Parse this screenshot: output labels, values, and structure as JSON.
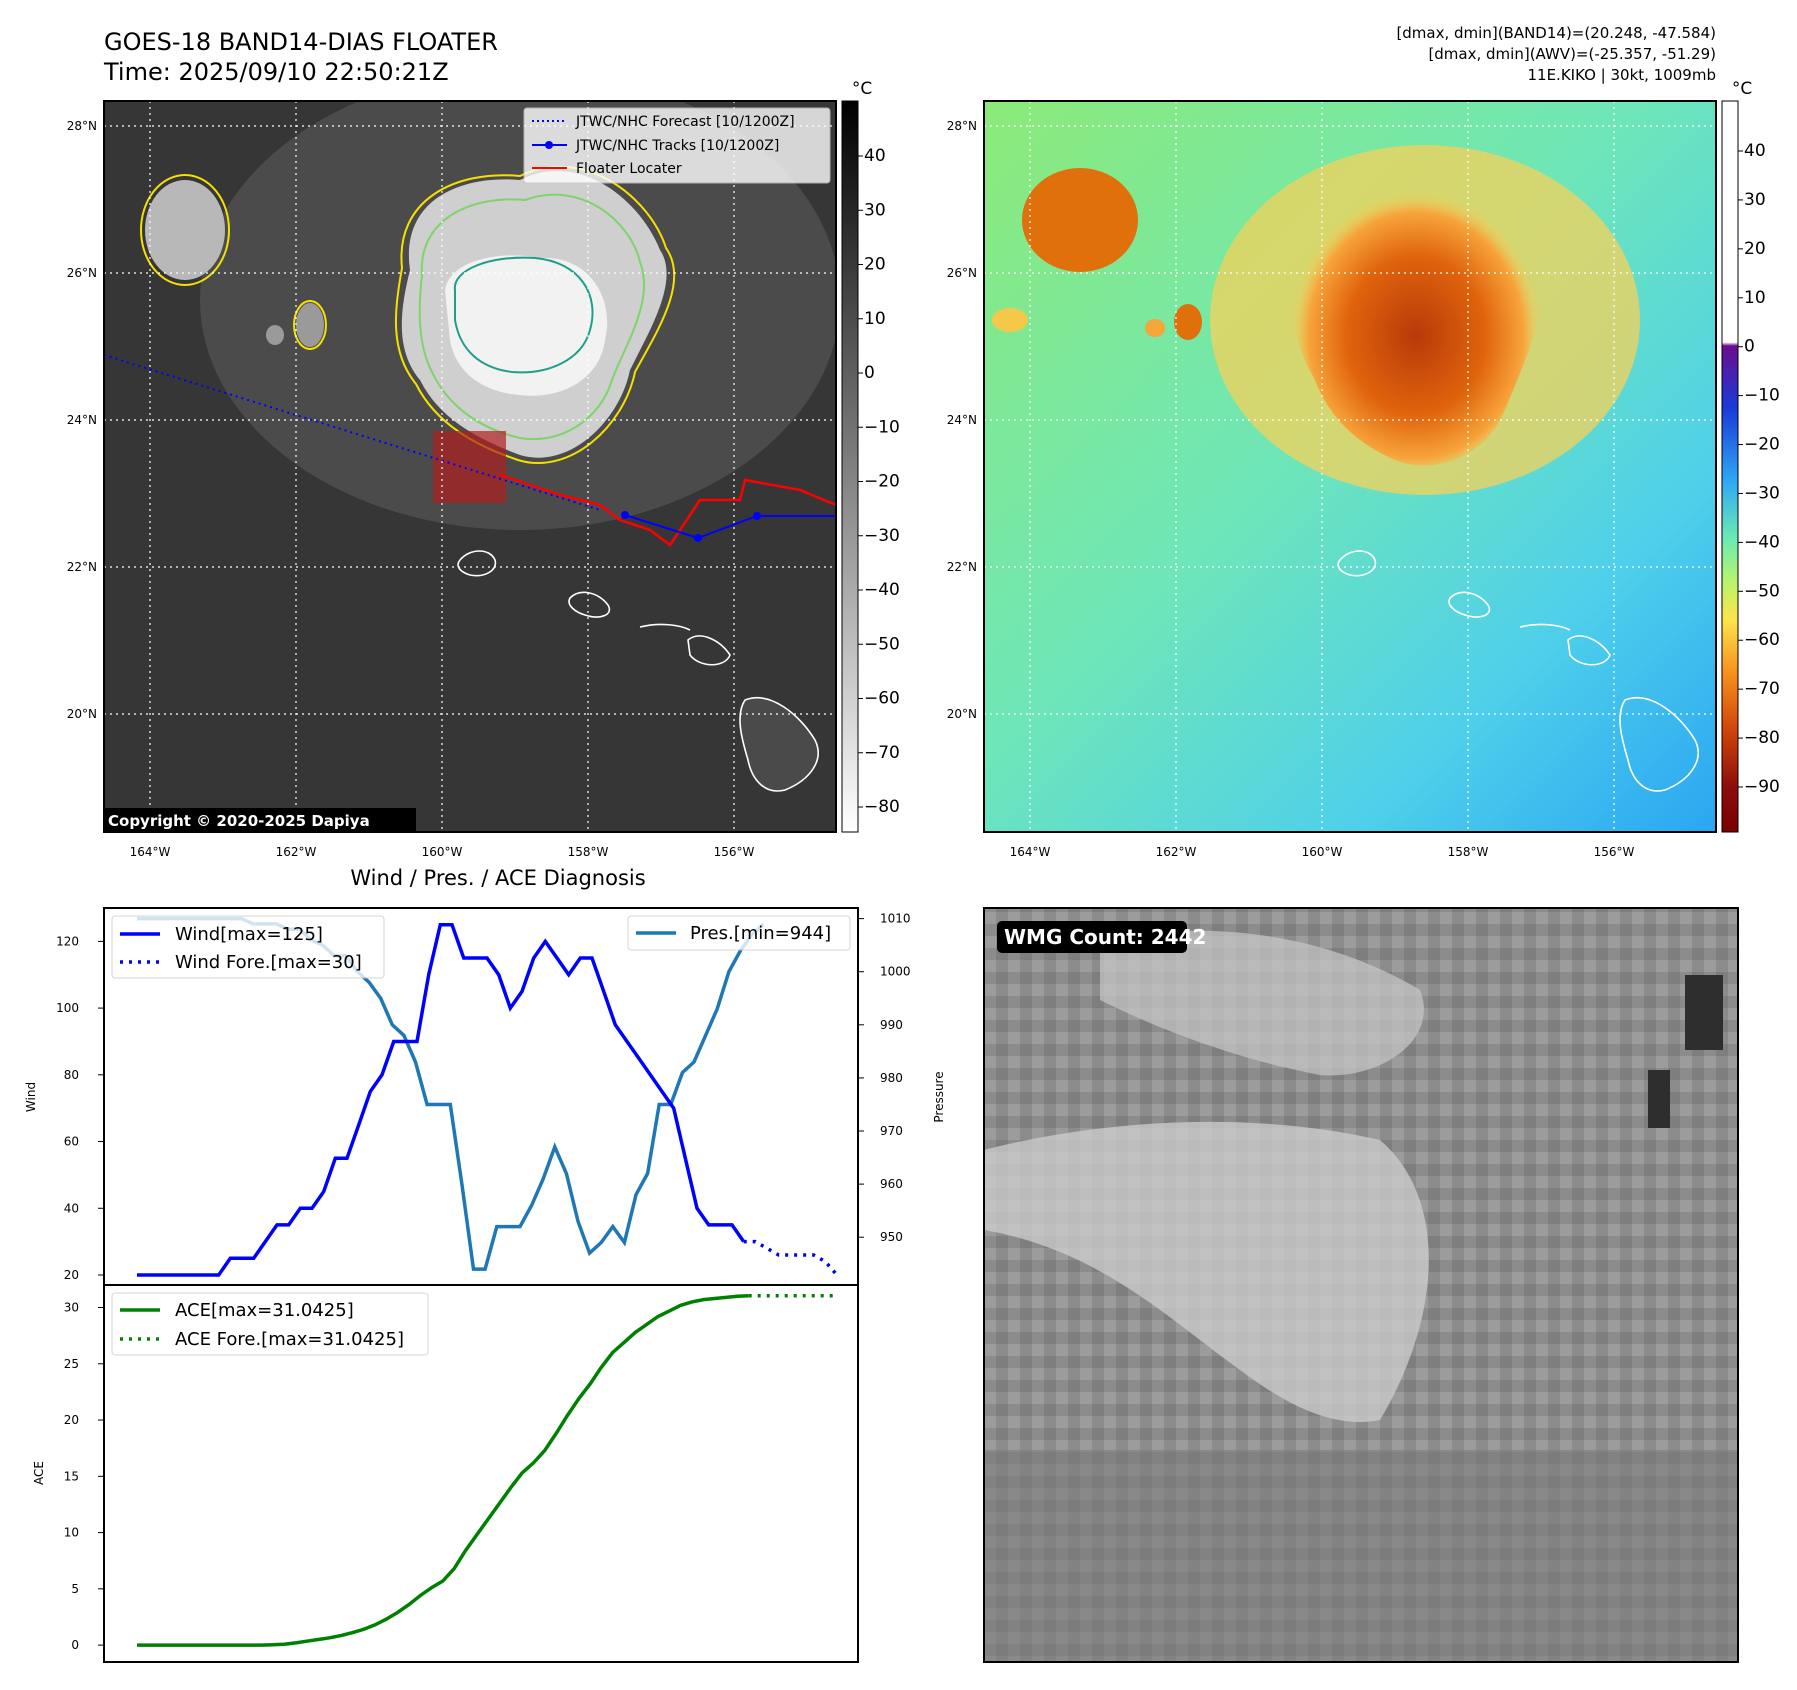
{
  "header": {
    "title_line1": "GOES-18 BAND14-DIAS FLOATER",
    "title_line2": "Time: 2025/09/10 22:50:21Z",
    "info_line1": "[dmax, dmin](BAND14)=(20.248, -47.584)",
    "info_line2": "[dmax, dmin](AWV)=(-25.357, -51.29)",
    "info_line3": "11E.KIKO | 30kt, 1009mb"
  },
  "map_axes": {
    "lon_labels": [
      "164°W",
      "162°W",
      "160°W",
      "158°W",
      "156°W"
    ],
    "lat_labels": [
      "28°N",
      "26°N",
      "24°N",
      "22°N",
      "20°N"
    ]
  },
  "ir_panel": {
    "colorbar_unit": "°C",
    "colorbar_ticks": [
      "40",
      "30",
      "20",
      "10",
      "0",
      "−10",
      "−20",
      "−30",
      "−40",
      "−50",
      "−60",
      "−70",
      "−80"
    ],
    "legend": [
      {
        "label": "JTWC/NHC Forecast [10/1200Z]",
        "color": "#0000ff",
        "style": "dotted"
      },
      {
        "label": "JTWC/NHC Tracks [10/1200Z]",
        "color": "#0000ff",
        "style": "solid-marker"
      },
      {
        "label": "Floater Locater",
        "color": "#ff0000",
        "style": "solid"
      }
    ],
    "copyright": "Copyright © 2020-2025 Dapiya"
  },
  "wv_panel": {
    "colorbar_unit": "°C",
    "colorbar_ticks": [
      "40",
      "30",
      "20",
      "10",
      "0",
      "−10",
      "−20",
      "−30",
      "−40",
      "−50",
      "−60",
      "−70",
      "−80",
      "−90"
    ]
  },
  "diag_panel": {
    "title": "Wind / Pres. / ACE Diagnosis",
    "wind_ylabel": "Wind",
    "pres_ylabel": "Pressure",
    "ace_ylabel": "ACE",
    "wind_ticks": [
      "120",
      "100",
      "80",
      "60",
      "40",
      "20"
    ],
    "pres_ticks": [
      "1010",
      "1000",
      "990",
      "980",
      "970",
      "960",
      "950"
    ],
    "ace_ticks": [
      "30",
      "25",
      "20",
      "15",
      "10",
      "5",
      "0"
    ],
    "legend_wind": "Wind[max=125]",
    "legend_wind_fore": "Wind Fore.[max=30]",
    "legend_pres": "Pres.[min=944]",
    "legend_ace": "ACE[max=31.0425]",
    "legend_ace_fore": "ACE Fore.[max=31.0425]"
  },
  "wmg_panel": {
    "label": "WMG Count: 2442"
  },
  "colors": {
    "wind": "#0000ff",
    "pressure": "#1f77b4",
    "ace": "#008000",
    "track": "#0000ff",
    "floater": "#ff0000"
  },
  "chart_data": {
    "type": "line",
    "wind": [
      20,
      20,
      20,
      20,
      20,
      20,
      20,
      20,
      25,
      25,
      25,
      30,
      35,
      35,
      40,
      40,
      45,
      55,
      55,
      65,
      75,
      80,
      90,
      90,
      90,
      110,
      125,
      125,
      115,
      115,
      115,
      110,
      100,
      105,
      115,
      120,
      115,
      110,
      115,
      115,
      105,
      95,
      90,
      85,
      80,
      75,
      70,
      55,
      40,
      35,
      35,
      35,
      30
    ],
    "wind_forecast": [
      30,
      30,
      28,
      26,
      26,
      26,
      26,
      24,
      20
    ],
    "pressure": [
      1010,
      1010,
      1010,
      1010,
      1010,
      1010,
      1010,
      1010,
      1010,
      1010,
      1009,
      1009,
      1009,
      1008,
      1008,
      1006,
      1005,
      1003,
      1003,
      1000,
      998,
      995,
      990,
      988,
      983,
      975,
      975,
      975,
      960,
      944,
      944,
      952,
      952,
      952,
      956,
      961,
      967,
      962,
      953,
      947,
      949,
      952,
      949,
      958,
      962,
      975,
      975,
      981,
      983,
      988,
      993,
      1000,
      1004,
      1007,
      1009
    ],
    "pressure_ylim": [
      941,
      1012
    ],
    "wind_ylim": [
      17,
      130
    ],
    "ace": [
      0,
      0,
      0,
      0,
      0,
      0,
      0,
      0,
      0,
      0,
      0,
      0,
      0.03,
      0.08,
      0.2,
      0.35,
      0.5,
      0.65,
      0.85,
      1.1,
      1.4,
      1.8,
      2.3,
      2.9,
      3.6,
      4.4,
      5.1,
      5.7,
      6.8,
      8.4,
      9.8,
      11.2,
      12.6,
      14.0,
      15.3,
      16.2,
      17.3,
      18.8,
      20.4,
      21.9,
      23.2,
      24.7,
      26.0,
      26.9,
      27.8,
      28.5,
      29.2,
      29.7,
      30.2,
      30.5,
      30.7,
      30.8,
      30.9,
      31.0,
      31.0425
    ],
    "ace_forecast": [
      31.0425,
      31.0425,
      31.0425,
      31.0425,
      31.0425,
      31.0425,
      31.0425,
      31.0425
    ],
    "ace_ylim": [
      -1.5,
      32
    ]
  }
}
